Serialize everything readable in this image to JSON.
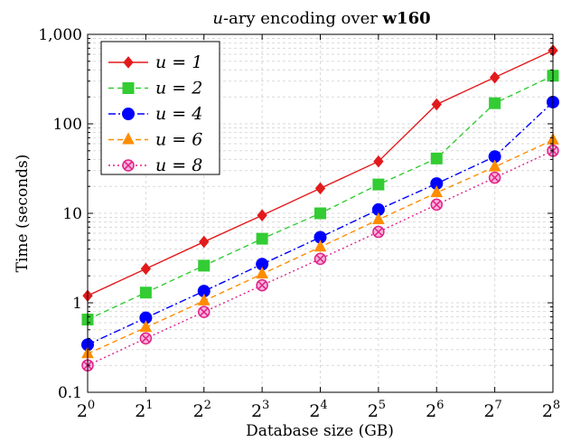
{
  "chart_data": {
    "type": "line",
    "title_prefix": "u",
    "title_middle": "-ary encoding over ",
    "title_bold": "w160",
    "xlabel": "Database size (GB)",
    "ylabel": "Time (seconds)",
    "x_scale": "log2",
    "y_scale": "log10",
    "x": [
      1,
      2,
      4,
      8,
      16,
      32,
      64,
      128,
      256
    ],
    "x_tick_base": "2",
    "x_tick_exponents": [
      "0",
      "1",
      "2",
      "3",
      "4",
      "5",
      "6",
      "7",
      "8"
    ],
    "ylim": [
      0.1,
      1000
    ],
    "y_ticks": [
      0.1,
      1,
      10,
      100,
      1000
    ],
    "y_tick_labels": [
      "0.1",
      "1",
      "10",
      "100",
      "1,000"
    ],
    "grid": true,
    "legend_position": "top-left",
    "series": [
      {
        "name": "u = 1",
        "color": "#e31a1c",
        "marker": "diamond",
        "dash": "solid",
        "values": [
          1.2,
          2.4,
          4.8,
          9.5,
          19,
          38,
          165,
          330,
          660
        ]
      },
      {
        "name": "u = 2",
        "color": "#33cc33",
        "marker": "square",
        "dash": "dashed",
        "values": [
          0.65,
          1.3,
          2.6,
          5.2,
          10,
          21,
          41,
          170,
          345
        ]
      },
      {
        "name": "u = 4",
        "color": "#0000ff",
        "marker": "circle",
        "dash": "dashdot",
        "values": [
          0.34,
          0.68,
          1.35,
          2.7,
          5.4,
          11,
          21.5,
          43,
          175
        ]
      },
      {
        "name": "u = 6",
        "color": "#ff8c00",
        "marker": "triangle",
        "dash": "dashed",
        "values": [
          0.27,
          0.53,
          1.05,
          2.1,
          4.2,
          8.5,
          17,
          33,
          66
        ]
      },
      {
        "name": "u = 8",
        "color": "#e0218a",
        "marker": "otimes",
        "dash": "dotted",
        "values": [
          0.2,
          0.4,
          0.79,
          1.57,
          3.1,
          6.2,
          12.5,
          25,
          50
        ]
      }
    ]
  }
}
